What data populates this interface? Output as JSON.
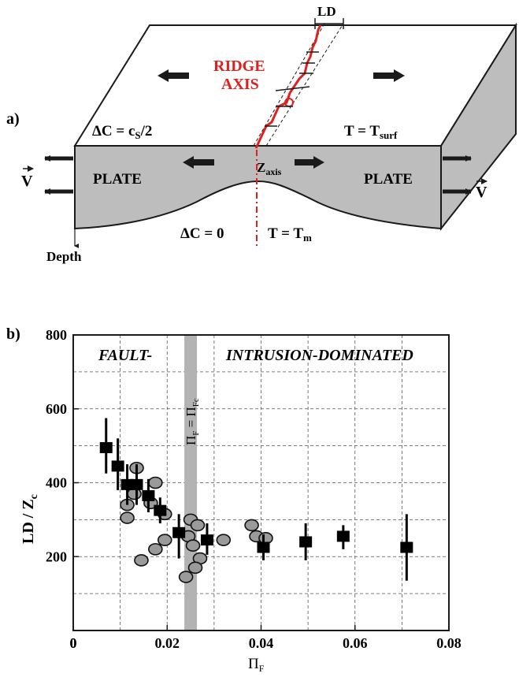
{
  "panel_a": {
    "label": "a)",
    "ld_label": "LD",
    "ridge_line1": "RIDGE",
    "ridge_line2": "AXIS",
    "left_condition": "ΔC = c",
    "left_condition_sub": "S",
    "left_condition_tail": "/2",
    "right_condition": "T = T",
    "right_condition_sub": "surf",
    "plate_left": "PLATE",
    "plate_right": "PLATE",
    "z_axis": "Z",
    "z_axis_sub": "axis",
    "velocity_left": "V",
    "velocity_right": "V",
    "bottom_condition_left": "ΔC = 0",
    "bottom_condition_right": "T = T",
    "bottom_condition_right_sub": "m",
    "depth_label": "Depth",
    "colors": {
      "ridge": "#e0201e",
      "plate": "#bdbdbd",
      "arrow": "#1a1a1a"
    }
  },
  "chart_data": {
    "type": "scatter",
    "panel_label": "b)",
    "xlabel": "Π",
    "xlabel_sub": "F",
    "ylabel": "LD / Z",
    "ylabel_sub": "c",
    "xlim": [
      0,
      0.08
    ],
    "ylim": [
      0,
      800
    ],
    "xticks": [
      0,
      0.02,
      0.04,
      0.06,
      0.08
    ],
    "xtick_labels": [
      "0",
      "0.02",
      "0.04",
      "0.06",
      "0.08"
    ],
    "yticks": [
      200,
      400,
      600,
      800
    ],
    "ytick_labels": [
      "200",
      "400",
      "600",
      "800"
    ],
    "grid": true,
    "region_left": "FAULT-",
    "region_right": "INTRUSION-DOMINATED",
    "vertical_band": {
      "x": 0.025,
      "label": "Π",
      "label_sub": "F",
      "label_eq": " = Π",
      "label_eq_sub": "Fc",
      "color": "#b3b3b3"
    },
    "series": [
      {
        "marker": "square",
        "color": "#000000",
        "points": [
          {
            "x": 0.007,
            "y": 495,
            "ylo": 425,
            "yhi": 575
          },
          {
            "x": 0.0095,
            "y": 445,
            "ylo": 380,
            "yhi": 520
          },
          {
            "x": 0.0115,
            "y": 395,
            "ylo": 340,
            "yhi": 450
          },
          {
            "x": 0.0135,
            "y": 395,
            "ylo": 340,
            "yhi": 450
          },
          {
            "x": 0.016,
            "y": 365,
            "ylo": 320,
            "yhi": 410
          },
          {
            "x": 0.0185,
            "y": 325,
            "ylo": 290,
            "yhi": 360
          },
          {
            "x": 0.0225,
            "y": 265,
            "ylo": 195,
            "yhi": 315
          },
          {
            "x": 0.0285,
            "y": 245,
            "ylo": 205,
            "yhi": 290
          },
          {
            "x": 0.0405,
            "y": 225,
            "ylo": 190,
            "yhi": 260
          },
          {
            "x": 0.0495,
            "y": 240,
            "ylo": 190,
            "yhi": 290
          },
          {
            "x": 0.0575,
            "y": 255,
            "ylo": 220,
            "yhi": 285
          },
          {
            "x": 0.071,
            "y": 225,
            "ylo": 135,
            "yhi": 315
          }
        ]
      },
      {
        "marker": "ellipse",
        "color": "#9a9a9a",
        "points": [
          {
            "x": 0.0135,
            "y": 440
          },
          {
            "x": 0.0115,
            "y": 340
          },
          {
            "x": 0.0115,
            "y": 305
          },
          {
            "x": 0.013,
            "y": 370
          },
          {
            "x": 0.0165,
            "y": 345
          },
          {
            "x": 0.0175,
            "y": 400
          },
          {
            "x": 0.0195,
            "y": 315
          },
          {
            "x": 0.0145,
            "y": 190
          },
          {
            "x": 0.0175,
            "y": 220
          },
          {
            "x": 0.0195,
            "y": 245
          },
          {
            "x": 0.025,
            "y": 300
          },
          {
            "x": 0.0265,
            "y": 285
          },
          {
            "x": 0.0245,
            "y": 255
          },
          {
            "x": 0.0255,
            "y": 230
          },
          {
            "x": 0.027,
            "y": 195
          },
          {
            "x": 0.026,
            "y": 170
          },
          {
            "x": 0.024,
            "y": 145
          },
          {
            "x": 0.032,
            "y": 245
          },
          {
            "x": 0.038,
            "y": 285
          },
          {
            "x": 0.039,
            "y": 255
          },
          {
            "x": 0.041,
            "y": 250
          }
        ]
      }
    ]
  }
}
